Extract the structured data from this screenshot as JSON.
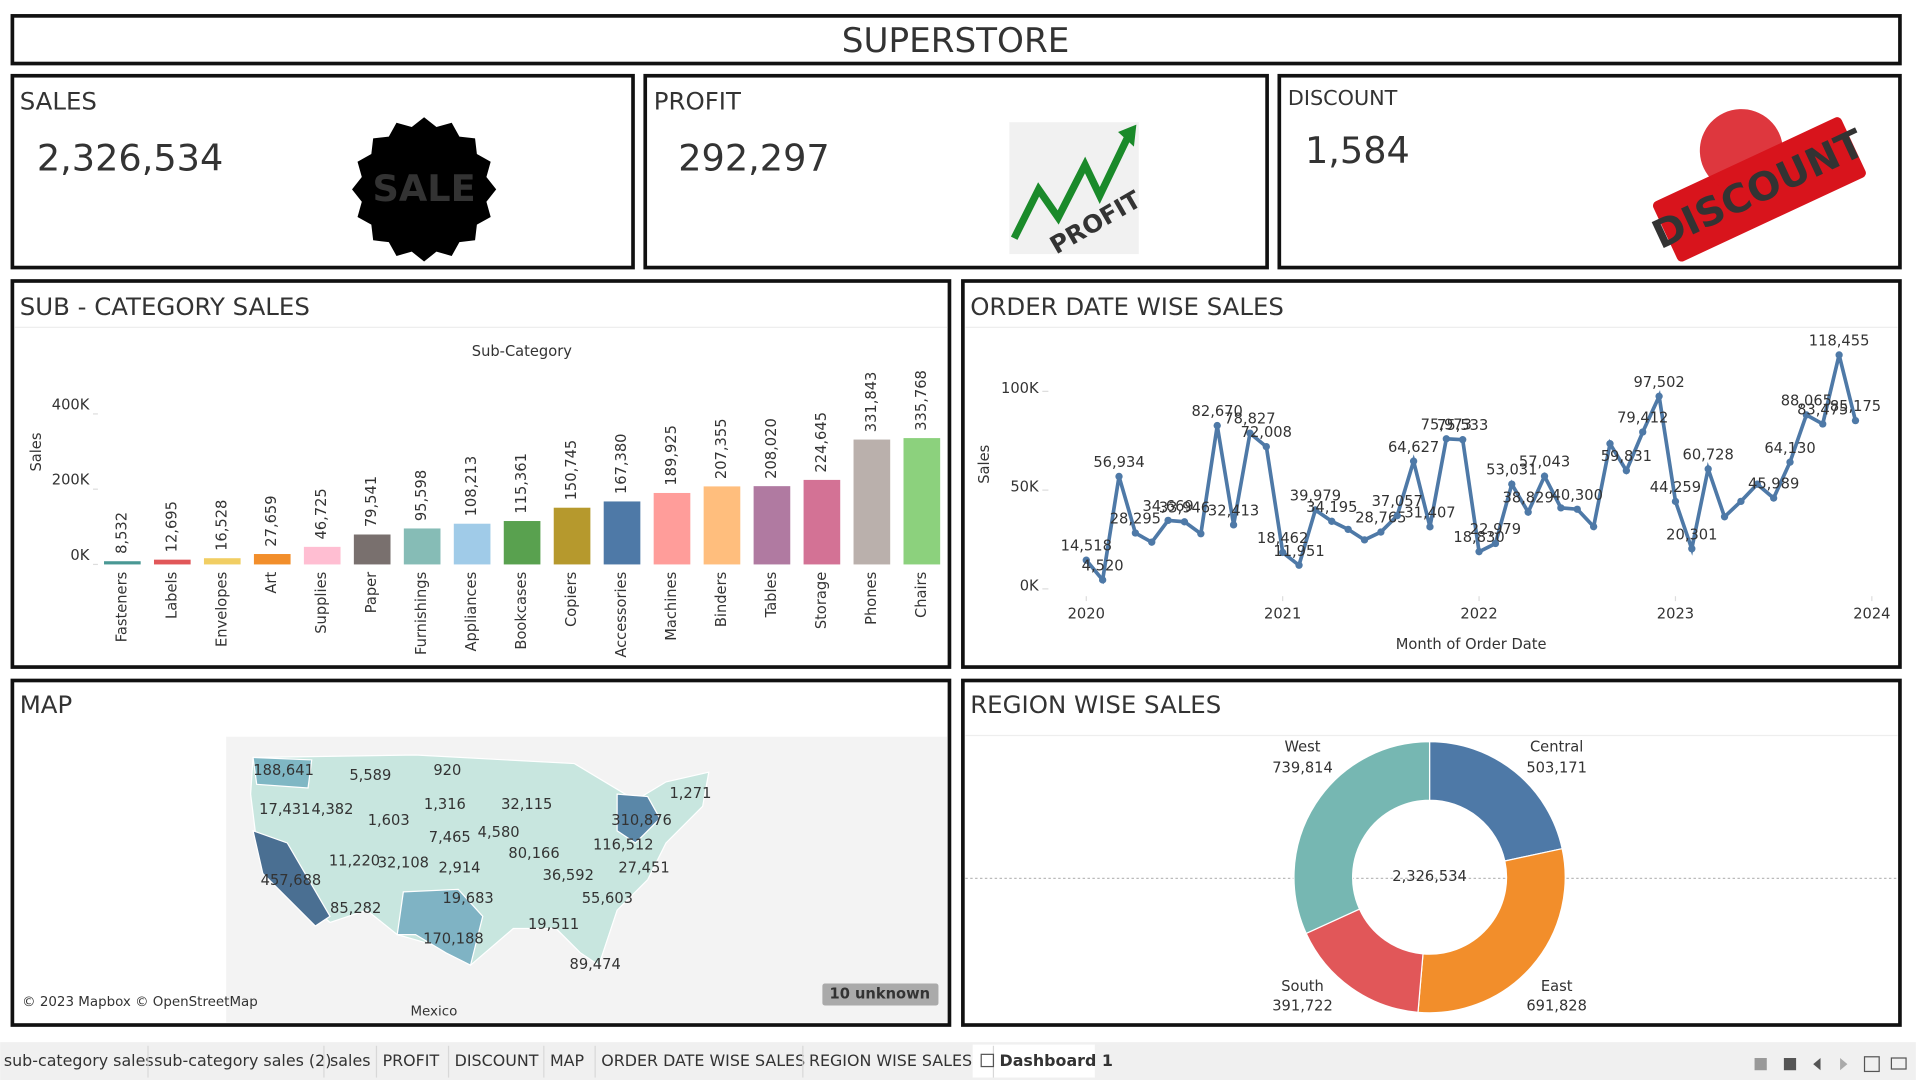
{
  "header": {
    "title": "SUPERSTORE"
  },
  "kpis": [
    {
      "label": "SALES",
      "value": "2,326,534",
      "image_text": "SALE"
    },
    {
      "label": "PROFIT",
      "value": "292,297",
      "image_text": "PROFIT"
    },
    {
      "label": "DISCOUNT",
      "value": "1,584",
      "image_text": "DISCOUNT"
    }
  ],
  "chart_data": [
    {
      "type": "bar",
      "title": "SUB - CATEGORY SALES",
      "x_label": "Sub-Category",
      "y_label": "Sales",
      "categories": [
        "Fasteners",
        "Labels",
        "Envelopes",
        "Art",
        "Supplies",
        "Paper",
        "Furnishings",
        "Appliances",
        "Bookcases",
        "Copiers",
        "Accessories",
        "Machines",
        "Binders",
        "Tables",
        "Storage",
        "Phones",
        "Chairs"
      ],
      "values": [
        8532,
        12695,
        16528,
        27659,
        46725,
        79541,
        95598,
        108213,
        115361,
        150745,
        167380,
        189925,
        207355,
        208020,
        224645,
        331843,
        335768
      ],
      "value_labels": [
        "8,532",
        "12,695",
        "16,528",
        "27,659",
        "46,725",
        "79,541",
        "95,598",
        "108,213",
        "115,361",
        "150,745",
        "167,380",
        "189,925",
        "207,355",
        "208,020",
        "224,645",
        "331,843",
        "335,768"
      ],
      "colors": [
        "#499894",
        "#e15759",
        "#f1ce63",
        "#f28e2b",
        "#ffbed2",
        "#79706e",
        "#86bcb6",
        "#a0cbe8",
        "#59a14f",
        "#b6992d",
        "#4e79a7",
        "#ff9d9a",
        "#ffbe7d",
        "#b07aa1",
        "#d37295",
        "#bab0ac",
        "#8cd17d"
      ],
      "ylim": [
        0,
        500000
      ],
      "yticks": [
        {
          "value": 0,
          "label": "0K"
        },
        {
          "value": 200000,
          "label": "200K"
        },
        {
          "value": 400000,
          "label": "400K"
        }
      ]
    },
    {
      "type": "line",
      "title": "ORDER DATE WISE SALES",
      "x_label": "Month of Order Date",
      "y_label": "Sales",
      "color": "#4e79a7",
      "x": [
        "2020-01",
        "2020-02",
        "2020-03",
        "2020-04",
        "2020-05",
        "2020-06",
        "2020-07",
        "2020-08",
        "2020-09",
        "2020-10",
        "2020-11",
        "2020-12",
        "2021-01",
        "2021-02",
        "2021-03",
        "2021-04",
        "2021-05",
        "2021-06",
        "2021-07",
        "2021-08",
        "2021-09",
        "2021-10",
        "2021-11",
        "2021-12",
        "2022-01",
        "2022-02",
        "2022-03",
        "2022-04",
        "2022-05",
        "2022-06",
        "2022-07",
        "2022-08",
        "2022-09",
        "2022-10",
        "2022-11",
        "2022-12",
        "2023-01",
        "2023-02",
        "2023-03",
        "2023-04",
        "2023-05",
        "2023-06",
        "2023-07",
        "2023-08",
        "2023-09",
        "2023-10",
        "2023-11",
        "2023-12"
      ],
      "values": [
        14518,
        4520,
        56934,
        28295,
        23648,
        34669,
        33946,
        27909,
        82670,
        32413,
        78827,
        72008,
        18462,
        11951,
        39979,
        34195,
        30132,
        24797,
        28765,
        37057,
        64627,
        31407,
        75973,
        75533,
        18830,
        22979,
        53031,
        38829,
        57043,
        41000,
        40300,
        31500,
        73500,
        59831,
        79412,
        97502,
        44259,
        20301,
        60728,
        36500,
        44300,
        53000,
        45989,
        64130,
        88065,
        83475,
        118455,
        85175
      ],
      "value_labels": [
        "14,518",
        "4,520",
        "56,934",
        "28,295",
        null,
        "34,669",
        "33,946",
        null,
        "82,670",
        "32,413",
        "78,827",
        "72,008",
        "18,462",
        "11,951",
        "39,979",
        "34,195",
        null,
        null,
        "28,765",
        "37,057",
        "64,627",
        "31,407",
        "75,973",
        "75,533",
        "18,830",
        "22,979",
        "53,031",
        "38,829",
        "57,043",
        null,
        "40,300",
        null,
        null,
        "59,831",
        "79,412",
        "97,502",
        "44,259",
        "20,301",
        "60,728",
        null,
        null,
        null,
        "45,989",
        "64,130",
        "88,065",
        "83,475",
        "118,455",
        "85,175"
      ],
      "xlim": [
        2019.85,
        2024.05
      ],
      "xticks": [
        2020,
        2021,
        2022,
        2023,
        2024
      ],
      "ylim": [
        0,
        120000
      ],
      "yticks": [
        {
          "value": 0,
          "label": "0K"
        },
        {
          "value": 50000,
          "label": "50K"
        },
        {
          "value": 100000,
          "label": "100K"
        }
      ]
    },
    {
      "type": "pie",
      "title": "REGION WISE SALES",
      "center_label": "2,326,534",
      "categories": [
        "West",
        "Central",
        "East",
        "South"
      ],
      "values": [
        739814,
        503171,
        691828,
        391722
      ],
      "value_labels": [
        "739,814",
        "503,171",
        "691,828",
        "391,722"
      ],
      "colors": [
        "#76b7b2",
        "#4e79a7",
        "#f28e2b",
        "#e15759"
      ]
    }
  ],
  "map": {
    "title": "MAP",
    "attribution": "© 2023 Mapbox © OpenStreetMap",
    "unknown": "10 unknown",
    "country": "Mexico",
    "labels": [
      "188,641",
      "5,589",
      "920",
      "1,271",
      "17,431",
      "4,382",
      "1,603",
      "1,316",
      "32,115",
      "310,876",
      "7,465",
      "4,580",
      "80,166",
      "116,512",
      "11,220",
      "32,108",
      "2,914",
      "36,592",
      "27,451",
      "457,688",
      "19,683",
      "55,603",
      "85,282",
      "19,511",
      "170,188",
      "89,474"
    ]
  },
  "tabs": [
    "sub-category sales",
    "sub-category sales (2)",
    "sales",
    "PROFIT",
    "DISCOUNT",
    "MAP",
    "ORDER DATE WISE SALES",
    "REGION WISE SALES",
    "Dashboard 1"
  ]
}
